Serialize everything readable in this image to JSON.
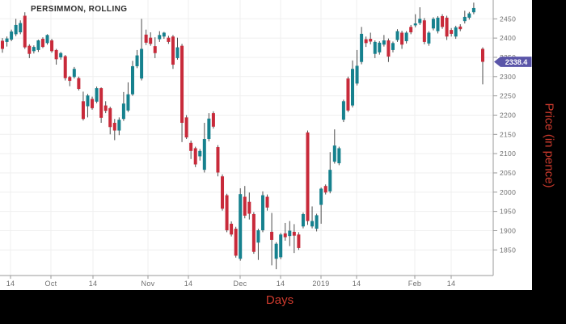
{
  "chart_data": {
    "type": "candlestick",
    "title": "PERSIMMON, ROLLING",
    "xlabel": "Days",
    "ylabel": "Price (in pence)",
    "last_price_label": "2338.4",
    "last_price": 2338.4,
    "y_ticks": [
      2450,
      2400,
      2350,
      2300,
      2250,
      2200,
      2150,
      2100,
      2050,
      2000,
      1950,
      1900,
      1850
    ],
    "ylim": [
      1784,
      2499
    ],
    "grid": true,
    "x_ticks": [
      {
        "label": "14",
        "x": 13
      },
      {
        "label": "Oct",
        "x": 63
      },
      {
        "label": "14",
        "x": 115
      },
      {
        "label": "Nov",
        "x": 183
      },
      {
        "label": "14",
        "x": 233
      },
      {
        "label": "Dec",
        "x": 297
      },
      {
        "label": "14",
        "x": 347
      },
      {
        "label": "2019",
        "x": 397
      },
      {
        "label": "14",
        "x": 441
      },
      {
        "label": "Feb",
        "x": 513
      },
      {
        "label": "14",
        "x": 558
      }
    ],
    "colors": {
      "up": "#16818e",
      "down": "#c82a3a",
      "wick": "#4d4d4d",
      "grid": "#efefef",
      "axis": "#999999",
      "tick_text": "#6e6e6e",
      "title": "#2e2e2e",
      "axis_label": "#cd3a2d",
      "tag_bg": "#5a55a8",
      "tag_text": "#ffffff"
    },
    "candles": [
      [
        2393,
        2400,
        2362,
        2372
      ],
      [
        2390,
        2404,
        2378,
        2399
      ],
      [
        2396,
        2422,
        2392,
        2417
      ],
      [
        2410,
        2450,
        2405,
        2434
      ],
      [
        2415,
        2446,
        2410,
        2439
      ],
      [
        2458,
        2467,
        2372,
        2376
      ],
      [
        2380,
        2384,
        2348,
        2359
      ],
      [
        2366,
        2381,
        2360,
        2377
      ],
      [
        2369,
        2396,
        2364,
        2394
      ],
      [
        2398,
        2402,
        2374,
        2377
      ],
      [
        2387,
        2410,
        2383,
        2408
      ],
      [
        2394,
        2398,
        2362,
        2366
      ],
      [
        2369,
        2372,
        2331,
        2345
      ],
      [
        2350,
        2364,
        2344,
        2361
      ],
      [
        2353,
        2356,
        2290,
        2296
      ],
      [
        2299,
        2302,
        2275,
        2289
      ],
      [
        2299,
        2325,
        2295,
        2320
      ],
      [
        2296,
        2300,
        2264,
        2268
      ],
      [
        2236,
        2261,
        2186,
        2190
      ],
      [
        2223,
        2255,
        2194,
        2251
      ],
      [
        2242,
        2248,
        2214,
        2218
      ],
      [
        2235,
        2274,
        2231,
        2270
      ],
      [
        2270,
        2272,
        2180,
        2193
      ],
      [
        2225,
        2236,
        2205,
        2211
      ],
      [
        2218,
        2222,
        2150,
        2169
      ],
      [
        2180,
        2190,
        2135,
        2160
      ],
      [
        2160,
        2194,
        2148,
        2188
      ],
      [
        2190,
        2260,
        2185,
        2230
      ],
      [
        2212,
        2285,
        2208,
        2254
      ],
      [
        2254,
        2341,
        2250,
        2327
      ],
      [
        2327,
        2369,
        2322,
        2355
      ],
      [
        2295,
        2450,
        2290,
        2372
      ],
      [
        2409,
        2422,
        2382,
        2388
      ],
      [
        2401,
        2415,
        2380,
        2385
      ],
      [
        2379,
        2402,
        2348,
        2361
      ],
      [
        2397,
        2418,
        2390,
        2408
      ],
      [
        2404,
        2416,
        2398,
        2414
      ],
      [
        2401,
        2406,
        2385,
        2390
      ],
      [
        2404,
        2408,
        2320,
        2331
      ],
      [
        2348,
        2401,
        2344,
        2376
      ],
      [
        2380,
        2385,
        2130,
        2180
      ],
      [
        2194,
        2200,
        2138,
        2142
      ],
      [
        2128,
        2134,
        2086,
        2107
      ],
      [
        2114,
        2118,
        2065,
        2072
      ],
      [
        2093,
        2112,
        2082,
        2107
      ],
      [
        2058,
        2180,
        2051,
        2138
      ],
      [
        2138,
        2205,
        2132,
        2191
      ],
      [
        2205,
        2210,
        2165,
        2170
      ],
      [
        2117,
        2122,
        2041,
        2051
      ],
      [
        2041,
        2046,
        1952,
        1957
      ],
      [
        1992,
        1996,
        1896,
        1901
      ],
      [
        1918,
        1924,
        1885,
        1890
      ],
      [
        1905,
        1910,
        1830,
        1835
      ],
      [
        1827,
        2010,
        1822,
        1995
      ],
      [
        1988,
        2016,
        1932,
        1939
      ],
      [
        1975,
        1999,
        1929,
        1944
      ],
      [
        1943,
        1948,
        1840,
        1845
      ],
      [
        1869,
        1905,
        1824,
        1901
      ],
      [
        1901,
        2002,
        1896,
        1992
      ],
      [
        1988,
        1994,
        1952,
        1960
      ],
      [
        1897,
        1946,
        1810,
        1876
      ],
      [
        1827,
        1870,
        1800,
        1866
      ],
      [
        1831,
        1894,
        1826,
        1890
      ],
      [
        1893,
        1920,
        1874,
        1883
      ],
      [
        1886,
        1925,
        1860,
        1900
      ],
      [
        1897,
        1917,
        1842,
        1887
      ],
      [
        1890,
        1896,
        1850,
        1855
      ],
      [
        1911,
        1947,
        1906,
        1943
      ],
      [
        2155,
        2160,
        1915,
        1925
      ],
      [
        1911,
        1963,
        1906,
        1925
      ],
      [
        1905,
        1944,
        1898,
        1940
      ],
      [
        1967,
        2012,
        1918,
        2009
      ],
      [
        2016,
        2020,
        1994,
        1999
      ],
      [
        2002,
        2104,
        1997,
        2058
      ],
      [
        2079,
        2163,
        2074,
        2121
      ],
      [
        2075,
        2118,
        2070,
        2114
      ],
      [
        2188,
        2240,
        2182,
        2236
      ],
      [
        2295,
        2300,
        2208,
        2212
      ],
      [
        2225,
        2342,
        2220,
        2320
      ],
      [
        2282,
        2369,
        2277,
        2328
      ],
      [
        2338,
        2429,
        2332,
        2411
      ],
      [
        2397,
        2404,
        2377,
        2387
      ],
      [
        2398,
        2414,
        2384,
        2391
      ],
      [
        2359,
        2394,
        2348,
        2390
      ],
      [
        2363,
        2392,
        2357,
        2388
      ],
      [
        2383,
        2408,
        2378,
        2394
      ],
      [
        2394,
        2399,
        2338,
        2352
      ],
      [
        2369,
        2391,
        2363,
        2387
      ],
      [
        2395,
        2423,
        2390,
        2418
      ],
      [
        2414,
        2419,
        2372,
        2383
      ],
      [
        2392,
        2418,
        2386,
        2414
      ],
      [
        2429,
        2434,
        2410,
        2415
      ],
      [
        2433,
        2462,
        2428,
        2438
      ],
      [
        2439,
        2480,
        2434,
        2450
      ],
      [
        2446,
        2452,
        2384,
        2390
      ],
      [
        2386,
        2418,
        2380,
        2414
      ],
      [
        2425,
        2454,
        2420,
        2450
      ],
      [
        2418,
        2457,
        2412,
        2453
      ],
      [
        2457,
        2462,
        2424,
        2429
      ],
      [
        2453,
        2458,
        2395,
        2404
      ],
      [
        2421,
        2426,
        2404,
        2411
      ],
      [
        2404,
        2432,
        2398,
        2428
      ],
      [
        2430,
        2436,
        2418,
        2423
      ],
      [
        2444,
        2471,
        2438,
        2455
      ],
      [
        2453,
        2468,
        2448,
        2464
      ],
      [
        2467,
        2492,
        2462,
        2478
      ],
      null,
      [
        2372,
        2376,
        2280,
        2338.4
      ]
    ]
  }
}
